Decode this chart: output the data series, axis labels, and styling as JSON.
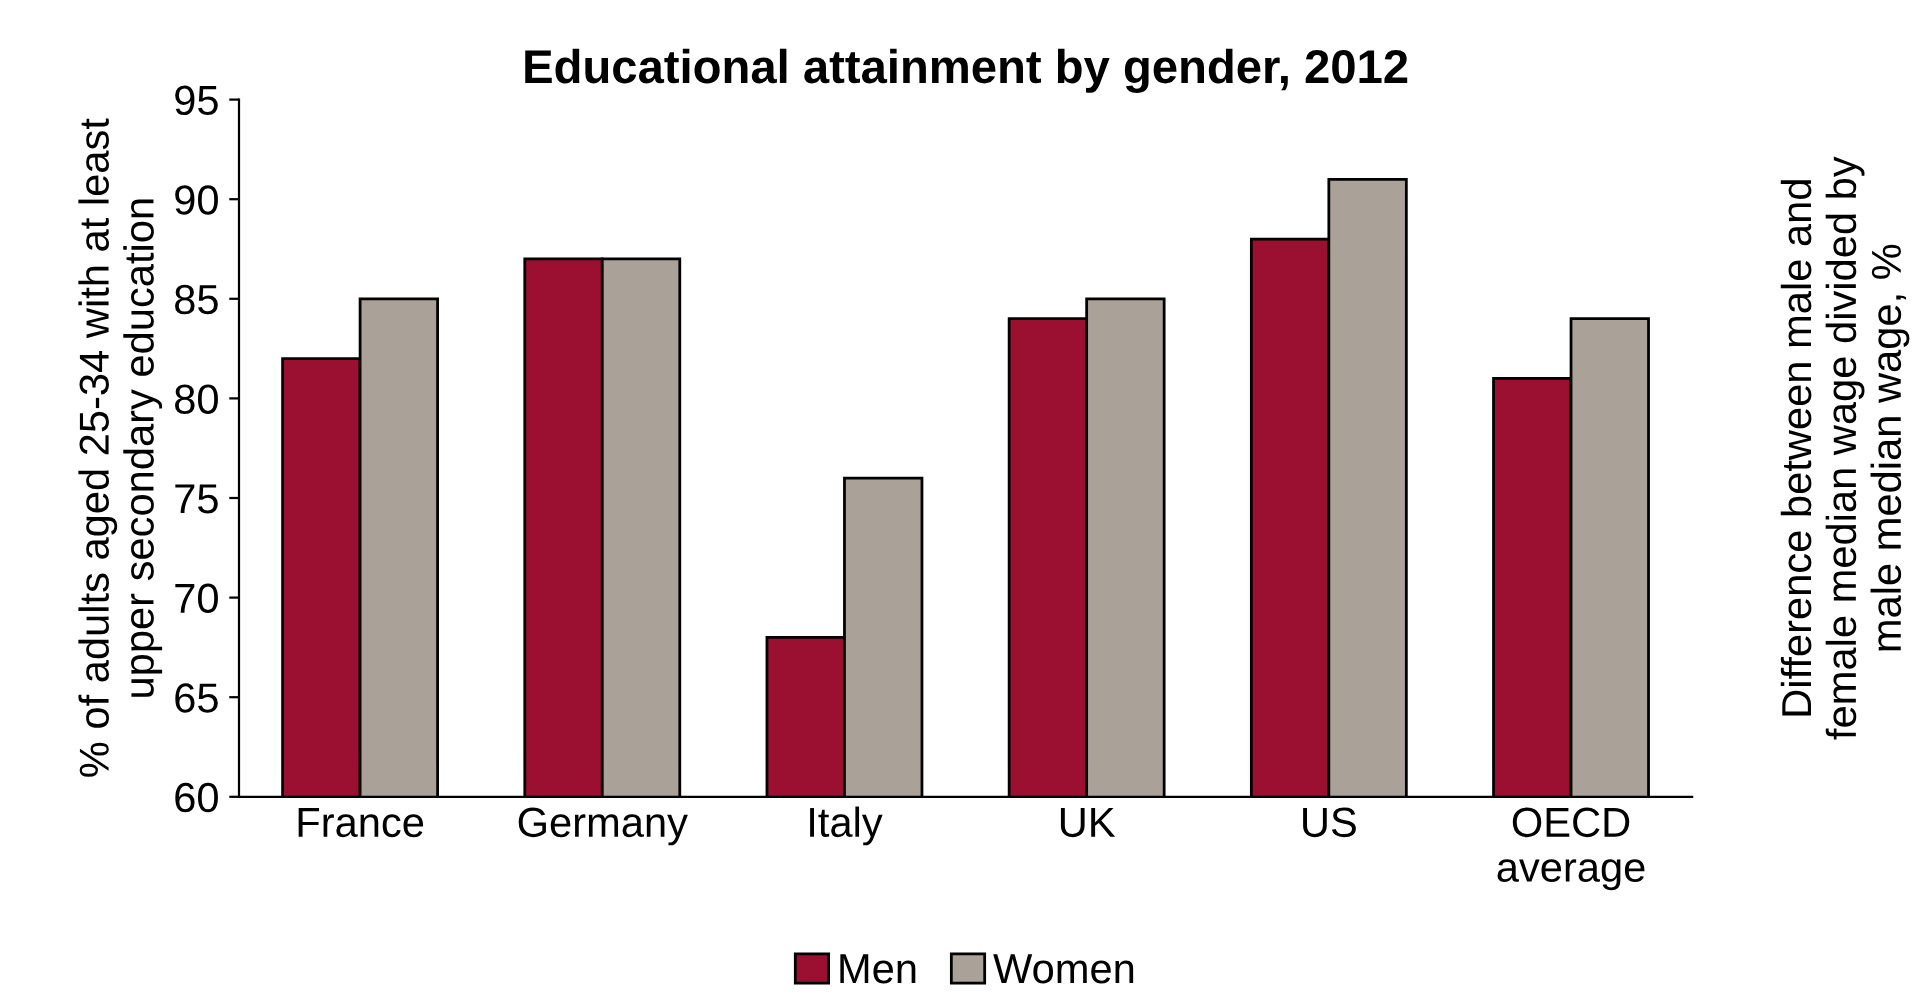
{
  "chart_data": {
    "type": "bar",
    "title": "Educational attainment by gender, 2012",
    "ylabel": "% of adults aged 25-34 with at least\nupper secondary education",
    "y2label": "Difference between male and\nfemale median wage divided by\nmale median wage, %",
    "categories": [
      "France",
      "Germany",
      "Italy",
      "UK",
      "US",
      "OECD\naverage"
    ],
    "series": [
      {
        "name": "Men",
        "color": "#9b1030",
        "values": [
          82,
          87,
          68,
          84,
          88,
          81
        ]
      },
      {
        "name": "Women",
        "color": "#aaa199",
        "values": [
          85,
          87,
          76,
          85,
          91,
          84
        ]
      }
    ],
    "ylim": [
      60,
      95
    ],
    "yticks": [
      60,
      65,
      70,
      75,
      80,
      85,
      90,
      95
    ],
    "grid": false,
    "legend": "bottom"
  }
}
